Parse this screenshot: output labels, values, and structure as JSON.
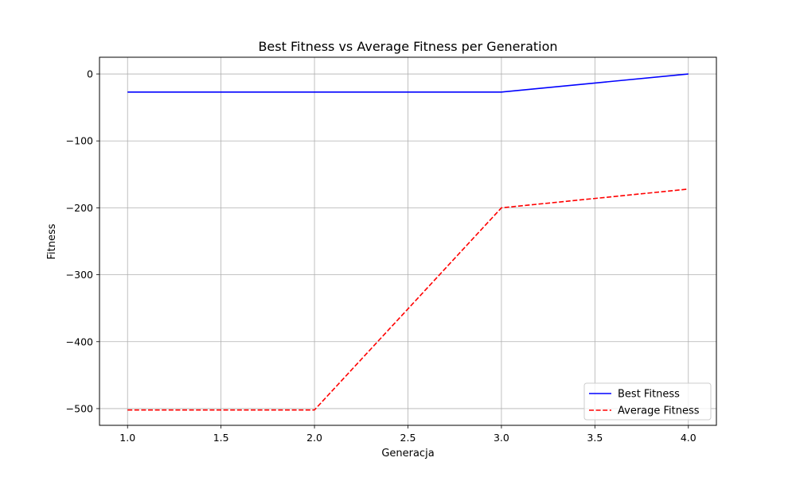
{
  "chart_data": {
    "type": "line",
    "title": "Best Fitness vs Average Fitness per Generation",
    "xlabel": "Generacja",
    "ylabel": "Fitness",
    "x": [
      1,
      2,
      3,
      4
    ],
    "xlim": [
      0.85,
      4.15
    ],
    "ylim": [
      -525,
      25
    ],
    "xticks": [
      1.0,
      1.5,
      2.0,
      2.5,
      3.0,
      3.5,
      4.0
    ],
    "xtick_labels": [
      "1.0",
      "1.5",
      "2.0",
      "2.5",
      "3.0",
      "3.5",
      "4.0"
    ],
    "yticks": [
      0,
      -100,
      -200,
      -300,
      -400,
      -500
    ],
    "ytick_labels": [
      "0",
      "−100",
      "−200",
      "−300",
      "−400",
      "−500"
    ],
    "grid": true,
    "legend_position": "lower right",
    "series": [
      {
        "name": "Best Fitness",
        "values": [
          -27,
          -27,
          -27,
          0
        ],
        "color": "#0000ff",
        "style": "solid"
      },
      {
        "name": "Average Fitness",
        "values": [
          -502,
          -502,
          -200,
          -172
        ],
        "color": "#ff0000",
        "style": "dashed"
      }
    ]
  }
}
